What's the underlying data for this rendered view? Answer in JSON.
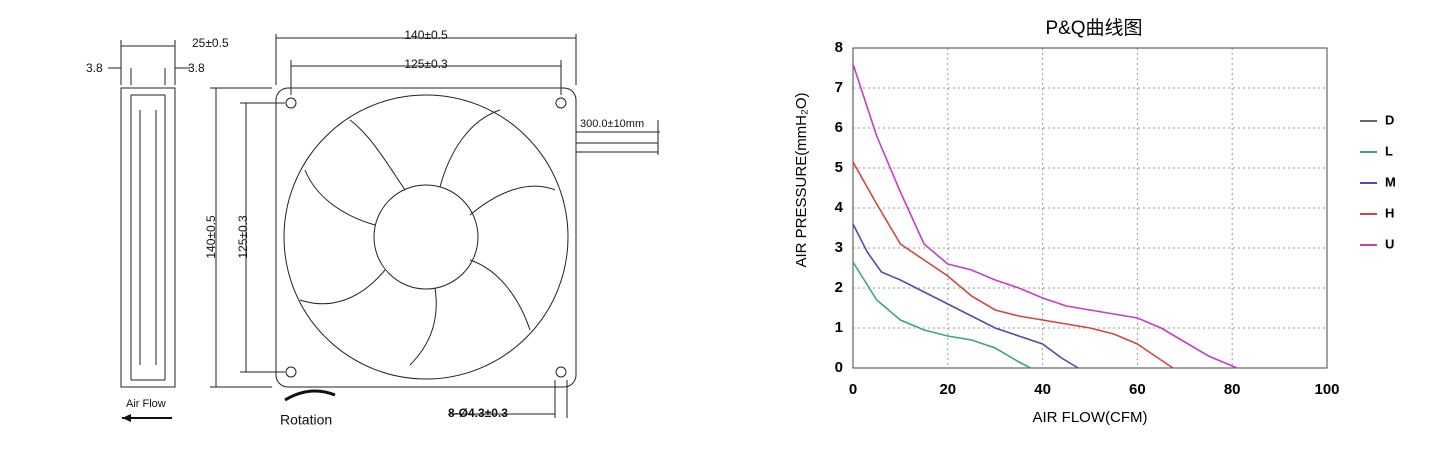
{
  "drawing": {
    "side_width": "25±0.5",
    "side_left": "3.8",
    "side_right": "3.8",
    "front_width": "140±0.5",
    "front_hole_width": "125±0.3",
    "cable": "300.0±10mm",
    "front_height": "140±0.5",
    "front_hole_height": "125±0.3",
    "air_flow": "Air Flow",
    "rotation": "Rotation",
    "holes": "8-Ø4.3±0.3"
  },
  "chart_data": {
    "type": "line",
    "title": "P&Q曲线图",
    "x_label": "AIR FLOW(CFM)",
    "y_label": "AIR PRESSURE(mmH₂O)",
    "xlim": [
      0,
      100
    ],
    "xticks": [
      0,
      20,
      40,
      60,
      80,
      100
    ],
    "ylim": [
      0,
      8
    ],
    "yticks": [
      0,
      1,
      2,
      3,
      4,
      5,
      6,
      7,
      8
    ],
    "grid": true,
    "legend": "right",
    "series": [
      {
        "name": "D",
        "color": "#666666",
        "x": [],
        "values": []
      },
      {
        "name": "L",
        "color": "#3aaa6e",
        "x": [
          0,
          5,
          10,
          15,
          20,
          25,
          30,
          35,
          37.5
        ],
        "values": [
          2.65,
          1.7,
          1.2,
          0.95,
          0.8,
          0.7,
          0.5,
          0.15,
          0
        ]
      },
      {
        "name": "M",
        "color": "#4b4fb0",
        "x": [
          0,
          3,
          6,
          10,
          15,
          20,
          25,
          30,
          35,
          40,
          44,
          47.5
        ],
        "values": [
          3.6,
          2.9,
          2.4,
          2.2,
          1.9,
          1.6,
          1.3,
          1.0,
          0.8,
          0.6,
          0.25,
          0
        ]
      },
      {
        "name": "H",
        "color": "#d2463c",
        "x": [
          0,
          5,
          10,
          15,
          20,
          25,
          30,
          35,
          40,
          45,
          50,
          55,
          60,
          65,
          67.5
        ],
        "values": [
          5.15,
          4.1,
          3.1,
          2.7,
          2.3,
          1.8,
          1.45,
          1.3,
          1.2,
          1.1,
          1.0,
          0.85,
          0.6,
          0.2,
          0
        ]
      },
      {
        "name": "U",
        "color": "#c83cc8",
        "x": [
          0,
          5,
          10,
          15,
          20,
          25,
          30,
          35,
          40,
          45,
          50,
          55,
          60,
          65,
          70,
          75,
          81
        ],
        "values": [
          7.6,
          5.8,
          4.4,
          3.1,
          2.6,
          2.45,
          2.2,
          2.0,
          1.75,
          1.55,
          1.45,
          1.35,
          1.25,
          1.0,
          0.65,
          0.3,
          0
        ]
      }
    ]
  }
}
